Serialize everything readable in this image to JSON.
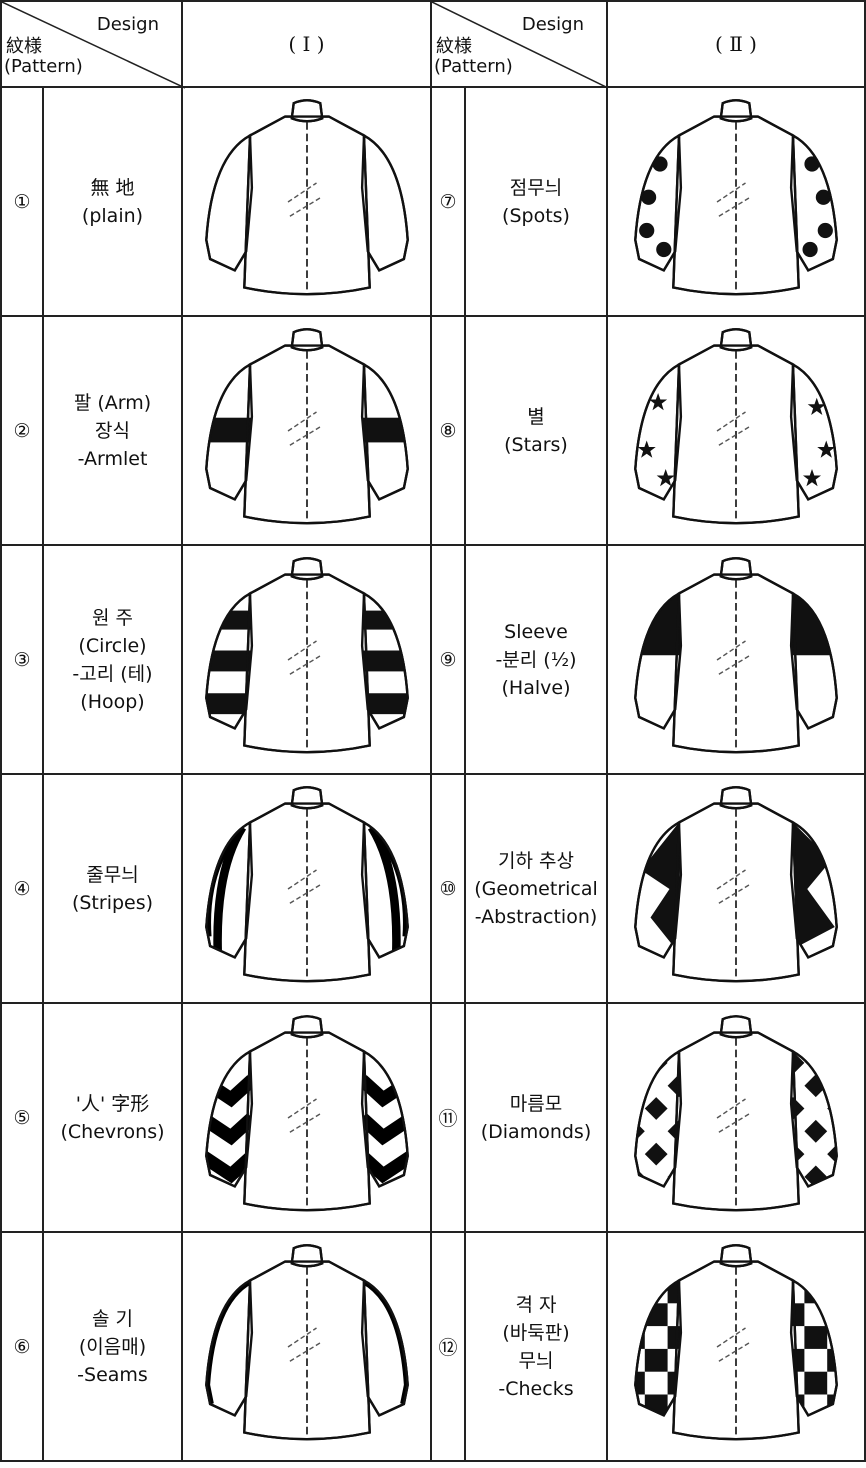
{
  "header": {
    "left": {
      "design": "Design",
      "pattern_kr": "紋様",
      "pattern": "(Pattern)"
    },
    "col1": "( I )",
    "right": {
      "design": "Design",
      "pattern_kr": "紋様",
      "pattern": "(Pattern)"
    },
    "col2": "( Ⅱ )"
  },
  "rows": [
    {
      "left": {
        "number": "①",
        "lines": [
          "無 地",
          "(plain)"
        ]
      },
      "right": {
        "number": "⑦",
        "lines": [
          "점무늬",
          "(Spots)"
        ]
      }
    },
    {
      "left": {
        "number": "②",
        "lines": [
          "팔 (Arm)",
          "장식",
          "-Armlet"
        ]
      },
      "right": {
        "number": "⑧",
        "lines": [
          "별",
          "(Stars)"
        ]
      }
    },
    {
      "left": {
        "number": "③",
        "lines": [
          "원 주",
          "(Circle)",
          "-고리 (테)",
          "(Hoop)"
        ]
      },
      "right": {
        "number": "⑨",
        "lines": [
          "Sleeve",
          "-분리 (½)",
          "(Halve)"
        ]
      }
    },
    {
      "left": {
        "number": "④",
        "lines": [
          "줄무늬",
          "(Stripes)"
        ]
      },
      "right": {
        "number": "⑩",
        "lines": [
          "기하 추상",
          "(Geometrical",
          "-Abstraction)"
        ]
      }
    },
    {
      "left": {
        "number": "⑤",
        "lines": [
          "'人' 字形",
          "(Chevrons)"
        ]
      },
      "right": {
        "number": "⑪",
        "lines": [
          "마름모",
          "(Diamonds)"
        ]
      }
    },
    {
      "left": {
        "number": "⑥",
        "lines": [
          "솔 기",
          "(이음매)",
          "-Seams"
        ]
      },
      "right": {
        "number": "⑫",
        "lines": [
          "격 자",
          "(바둑판)",
          "무늬",
          "-Checks"
        ]
      }
    }
  ]
}
